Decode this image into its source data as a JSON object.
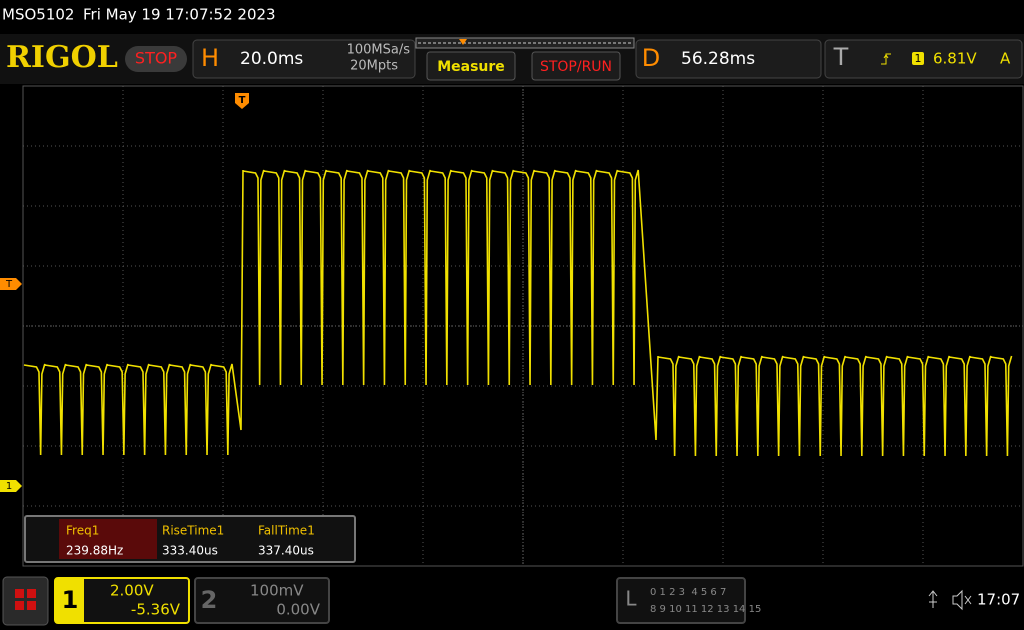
{
  "status_bar": {
    "model": "MSO5102",
    "datetime": "Fri May 19 17:07:52 2023"
  },
  "toolbar": {
    "logo": "RIGOL",
    "run_state": "STOP",
    "horizontal": {
      "label": "H",
      "timebase": "20.0ms",
      "sample_rate": "100MSa/s",
      "memory_depth": "20Mpts"
    },
    "buttons": [
      "Measure",
      "STOP/RUN"
    ],
    "delay": {
      "label": "D",
      "value": "56.28ms"
    },
    "trigger": {
      "label": "T",
      "source": "1",
      "level": "6.81V",
      "mode": "A"
    }
  },
  "screen": {
    "markers": {
      "trigger_position": "T",
      "trigger_level": "T",
      "channel1": "1"
    },
    "measurements": [
      {
        "name": "Freq1",
        "value": "239.88Hz"
      },
      {
        "name": "RiseTime1",
        "value": "333.40us"
      },
      {
        "name": "FallTime1",
        "value": "337.40us"
      }
    ]
  },
  "footer": {
    "channel1": {
      "label": "1",
      "scale": "2.00V",
      "offset": "-5.36V"
    },
    "channel2": {
      "label": "2",
      "scale": "100mV",
      "offset": "0.00V"
    },
    "logic": {
      "label": "L",
      "row1": "0 1 2 3  4 5 6 7",
      "row2": "8 9 10 11 12 13 14 15"
    },
    "clock": "17:07"
  }
}
